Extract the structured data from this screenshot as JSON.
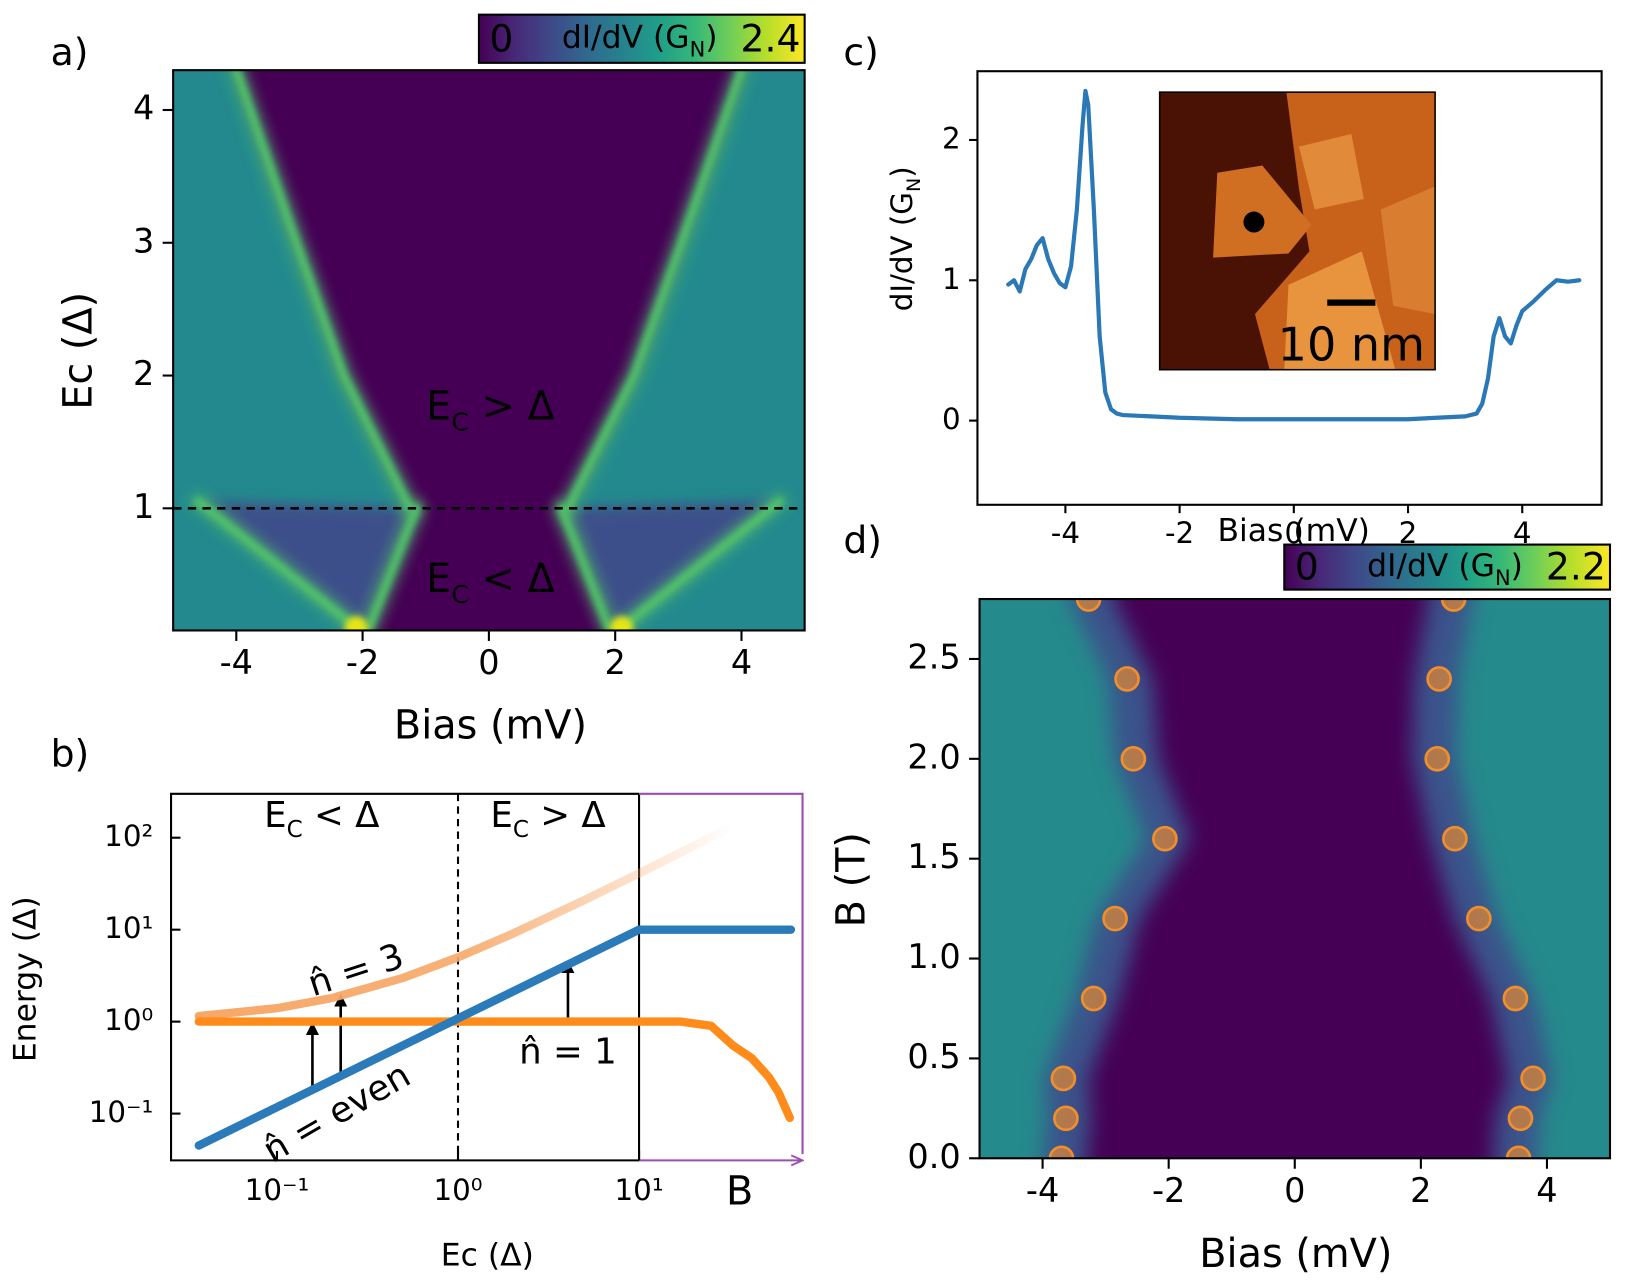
{
  "chart_data": [
    {
      "type": "heatmap",
      "panel_label": "a)",
      "xlabel": "Bias (mV)",
      "ylabel": "Ec (Δ)",
      "xlim": [
        -5,
        5
      ],
      "ylim": [
        0.08,
        4.3
      ],
      "xticks": [
        -4,
        -2,
        0,
        2,
        4
      ],
      "yticks": [
        1,
        2,
        3,
        4
      ],
      "colorbar": {
        "min": 0,
        "max": 2.4,
        "label": {
          "main": "dI/dV (G",
          "sub": "N",
          "end": ")"
        }
      },
      "hline": 1,
      "series": [
        {
          "color": "#52c569",
          "x": [
            -1.25,
            -2.3,
            -3.05,
            -4.0
          ],
          "values": [
            1,
            2,
            3,
            4.3
          ]
        },
        {
          "color": "#52c569",
          "x": [
            1.25,
            2.3,
            3.05,
            4.0
          ],
          "values": [
            1,
            2,
            3,
            4.3
          ]
        },
        {
          "color": "#52c569",
          "x": [
            -1.9,
            -1.15
          ],
          "values": [
            0.1,
            1
          ]
        },
        {
          "color": "#52c569",
          "x": [
            1.9,
            1.15
          ],
          "values": [
            0.1,
            1
          ]
        },
        {
          "color": "#52c569",
          "x": [
            -2.1,
            -4.6
          ],
          "values": [
            0.1,
            1.05
          ]
        },
        {
          "color": "#52c569",
          "x": [
            2.1,
            4.6
          ],
          "values": [
            0.1,
            1.05
          ]
        }
      ],
      "annotations": [
        {
          "main": "E",
          "sub": "C",
          "end": " > Δ"
        },
        {
          "main": "E",
          "sub": "C",
          "end": " < Δ"
        }
      ]
    },
    {
      "type": "line",
      "panel_label": "b)",
      "xlabel": "Ec (Δ)",
      "ylabel": "Energy (Δ)",
      "x2label": "B",
      "xlog": true,
      "ylog": true,
      "xlim": [
        0.026,
        80
      ],
      "ylim": [
        0.031,
        300
      ],
      "xticks": [
        {
          "value": 0.1,
          "label": "10⁻¹"
        },
        {
          "value": 1,
          "label": "10⁰"
        },
        {
          "value": 10,
          "label": "10¹"
        }
      ],
      "yticks": [
        {
          "value": 0.1,
          "label": "10⁻¹"
        },
        {
          "value": 1,
          "label": "10⁰"
        },
        {
          "value": 10,
          "label": "10¹"
        },
        {
          "value": 100,
          "label": "10²"
        }
      ],
      "vlines": [
        {
          "value": 1,
          "style": "dashed"
        },
        {
          "value": 10,
          "style": "solid"
        }
      ],
      "series": [
        {
          "color": "#f7a868",
          "fade": true,
          "x": [
            0.037,
            0.1,
            0.2,
            0.5,
            1,
            2,
            5,
            10,
            20,
            33
          ],
          "values": [
            1.15,
            1.4,
            1.8,
            3,
            5,
            9,
            21,
            41,
            81,
            133
          ]
        },
        {
          "color": "#ff8c1a",
          "x": [
            0.037,
            10,
            17,
            25,
            33,
            42,
            52,
            59,
            68
          ],
          "values": [
            1,
            1,
            1,
            0.9,
            0.55,
            0.4,
            0.25,
            0.17,
            0.09
          ]
        },
        {
          "color": "#2b7bba",
          "x": [
            0.037,
            10,
            69
          ],
          "values": [
            0.045,
            10,
            10
          ]
        }
      ],
      "annotations": [
        {
          "main": "E",
          "sub": "C",
          "end": " < Δ"
        },
        {
          "main": "E",
          "sub": "C",
          "end": " > Δ"
        },
        {
          "text": "n̂ = 3"
        },
        {
          "text": "n̂ = 1"
        },
        {
          "text": "n̂ = even"
        }
      ]
    },
    {
      "type": "line",
      "panel_label": "c)",
      "xlabel": "Bias (mV)",
      "ylabel": {
        "main": "dI/dV (G",
        "sub": "N",
        "end": ")"
      },
      "xlim": [
        -5.54,
        5.39
      ],
      "ylim": [
        -0.6,
        2.49
      ],
      "xticks": [
        -4,
        -2,
        0,
        2,
        4
      ],
      "yticks": [
        0,
        1,
        2
      ],
      "inset_label": "10 nm",
      "series": [
        {
          "color": "#2a78b5",
          "x": [
            -5,
            -4.9,
            -4.8,
            -4.7,
            -4.6,
            -4.5,
            -4.4,
            -4.3,
            -4.2,
            -4.1,
            -4,
            -3.9,
            -3.8,
            -3.7,
            -3.65,
            -3.6,
            -3.5,
            -3.4,
            -3.3,
            -3.2,
            -3.1,
            -3,
            -2.5,
            -2,
            -1,
            0,
            1,
            2,
            2.5,
            3,
            3.2,
            3.3,
            3.4,
            3.5,
            3.6,
            3.7,
            3.8,
            3.9,
            4,
            4.2,
            4.4,
            4.6,
            4.8,
            5
          ],
          "values": [
            0.97,
            1.0,
            0.92,
            1.08,
            1.15,
            1.25,
            1.3,
            1.15,
            1.05,
            0.98,
            0.95,
            1.1,
            1.5,
            2.1,
            2.35,
            2.25,
            1.5,
            0.6,
            0.2,
            0.08,
            0.05,
            0.04,
            0.03,
            0.02,
            0.01,
            0.01,
            0.01,
            0.01,
            0.02,
            0.03,
            0.05,
            0.12,
            0.3,
            0.6,
            0.73,
            0.6,
            0.55,
            0.68,
            0.78,
            0.85,
            0.93,
            1.0,
            0.99,
            1.0
          ]
        }
      ]
    },
    {
      "type": "scatter",
      "panel_label": "d)",
      "xlabel": "Bias (mV)",
      "ylabel": "B (T)",
      "xlim": [
        -5,
        5
      ],
      "ylim": [
        0,
        2.8
      ],
      "xticks": [
        -4,
        -2,
        0,
        2,
        4
      ],
      "yticks": [
        {
          "value": 0,
          "label": "0.0"
        },
        0.5,
        {
          "value": 1,
          "label": "1.0"
        },
        1.5,
        {
          "value": 2,
          "label": "2.0"
        },
        2.5
      ],
      "colorbar": {
        "min": 0,
        "max": 2.2,
        "label": {
          "main": "dI/dV (G",
          "sub": "N",
          "end": ")"
        }
      },
      "series": [
        {
          "color": "#f28e2b",
          "x": [
            -3.7,
            -3.63,
            -3.67,
            -3.19,
            -2.85,
            -2.06,
            -2.56,
            -2.66,
            -3.27
          ],
          "values": [
            0,
            0.2,
            0.4,
            0.8,
            1.2,
            1.6,
            2.0,
            2.4,
            2.8
          ]
        },
        {
          "color": "#f28e2b",
          "x": [
            3.55,
            3.58,
            3.78,
            3.5,
            2.92,
            2.54,
            2.26,
            2.29,
            2.52
          ],
          "values": [
            0,
            0.2,
            0.4,
            0.8,
            1.2,
            1.6,
            2.0,
            2.4,
            2.8
          ]
        }
      ]
    }
  ]
}
